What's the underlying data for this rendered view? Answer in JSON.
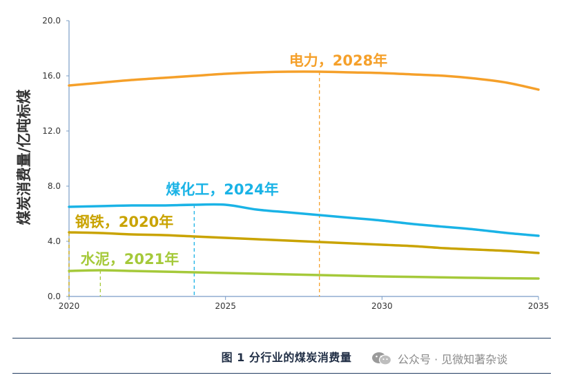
{
  "chart_data": {
    "type": "line",
    "title": "",
    "xlabel": "",
    "ylabel": "煤炭消费量/亿吨标煤",
    "xlim": [
      2020,
      2035
    ],
    "ylim": [
      0,
      20
    ],
    "x_ticks": [
      "2020",
      "2025",
      "2030",
      "2035"
    ],
    "y_ticks": [
      "0.0",
      "4.0",
      "8.0",
      "12.0",
      "16.0",
      "20.0"
    ],
    "grid": false,
    "x": [
      2020,
      2021,
      2022,
      2023,
      2024,
      2025,
      2026,
      2027,
      2028,
      2029,
      2030,
      2031,
      2032,
      2033,
      2034,
      2035
    ],
    "series": [
      {
        "key": "power",
        "color": "#F5A02A",
        "values": [
          15.3,
          15.5,
          15.7,
          15.85,
          16.0,
          16.15,
          16.25,
          16.3,
          16.3,
          16.25,
          16.2,
          16.1,
          16.0,
          15.8,
          15.5,
          15.0
        ],
        "peak_year": 2028,
        "peak_value": 16.3
      },
      {
        "key": "coal_chemical",
        "color": "#1AB3E6",
        "values": [
          6.5,
          6.55,
          6.6,
          6.6,
          6.65,
          6.65,
          6.3,
          6.1,
          5.9,
          5.7,
          5.5,
          5.25,
          5.05,
          4.85,
          4.6,
          4.4
        ],
        "peak_year": 2024,
        "peak_value": 6.65
      },
      {
        "key": "steel",
        "color": "#C9A300",
        "values": [
          4.65,
          4.6,
          4.5,
          4.45,
          4.35,
          4.25,
          4.15,
          4.05,
          3.95,
          3.85,
          3.75,
          3.65,
          3.5,
          3.4,
          3.3,
          3.15
        ],
        "peak_year": 2020,
        "peak_value": 4.65
      },
      {
        "key": "cement",
        "color": "#A5C93A",
        "values": [
          1.85,
          1.9,
          1.85,
          1.8,
          1.75,
          1.7,
          1.65,
          1.6,
          1.55,
          1.5,
          1.45,
          1.42,
          1.38,
          1.35,
          1.32,
          1.3
        ],
        "peak_year": 2021,
        "peak_value": 1.9
      }
    ],
    "annotations": [
      {
        "key": "power",
        "text": "电力，2028年",
        "color": "#F5A02A"
      },
      {
        "key": "coal_chemical",
        "text": "煤化工，2024年",
        "color": "#1AB3E6"
      },
      {
        "key": "steel",
        "text": "钢铁，2020年",
        "color": "#C9A300"
      },
      {
        "key": "cement",
        "text": "水泥，2021年",
        "color": "#A5C93A"
      }
    ]
  },
  "caption": "图 1  分行业的煤炭消费量",
  "watermark": "公众号 · 见微知著杂谈"
}
